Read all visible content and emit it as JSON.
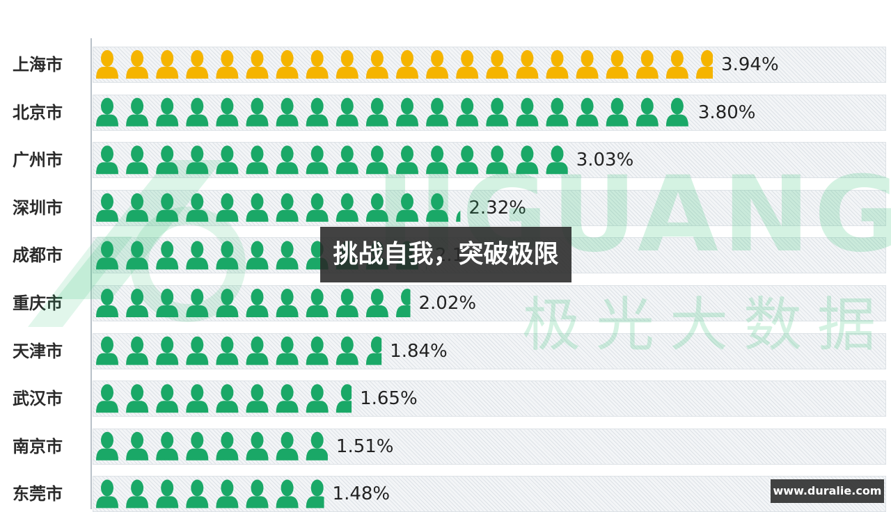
{
  "chart_data": {
    "type": "bar",
    "title": "",
    "categories": [
      "上海市",
      "北京市",
      "广州市",
      "深圳市",
      "成都市",
      "重庆市",
      "天津市",
      "武汉市",
      "南京市",
      "东莞市"
    ],
    "values": [
      3.94,
      3.8,
      3.03,
      2.32,
      2.1,
      2.02,
      1.84,
      1.65,
      1.51,
      1.48
    ],
    "value_labels": [
      "3.94%",
      "3.80%",
      "3.03%",
      "2.32%",
      "2.1",
      "2.02%",
      "1.84%",
      "1.65%",
      "1.51%",
      "1.48%"
    ],
    "encoding": "pictogram (person icons)",
    "highlight_color": "#f5b400",
    "base_color": "#1aa867",
    "xlabel": "",
    "ylabel": ""
  },
  "watermark": {
    "brand_text": "IIGUANG",
    "cn_text": "极光大数据"
  },
  "overlay": {
    "banner_text": "挑战自我，突破极限",
    "site_badge": "www.duralie.com"
  },
  "colors": {
    "title": "#2a1a7a",
    "overlay_bg": "#282828"
  }
}
